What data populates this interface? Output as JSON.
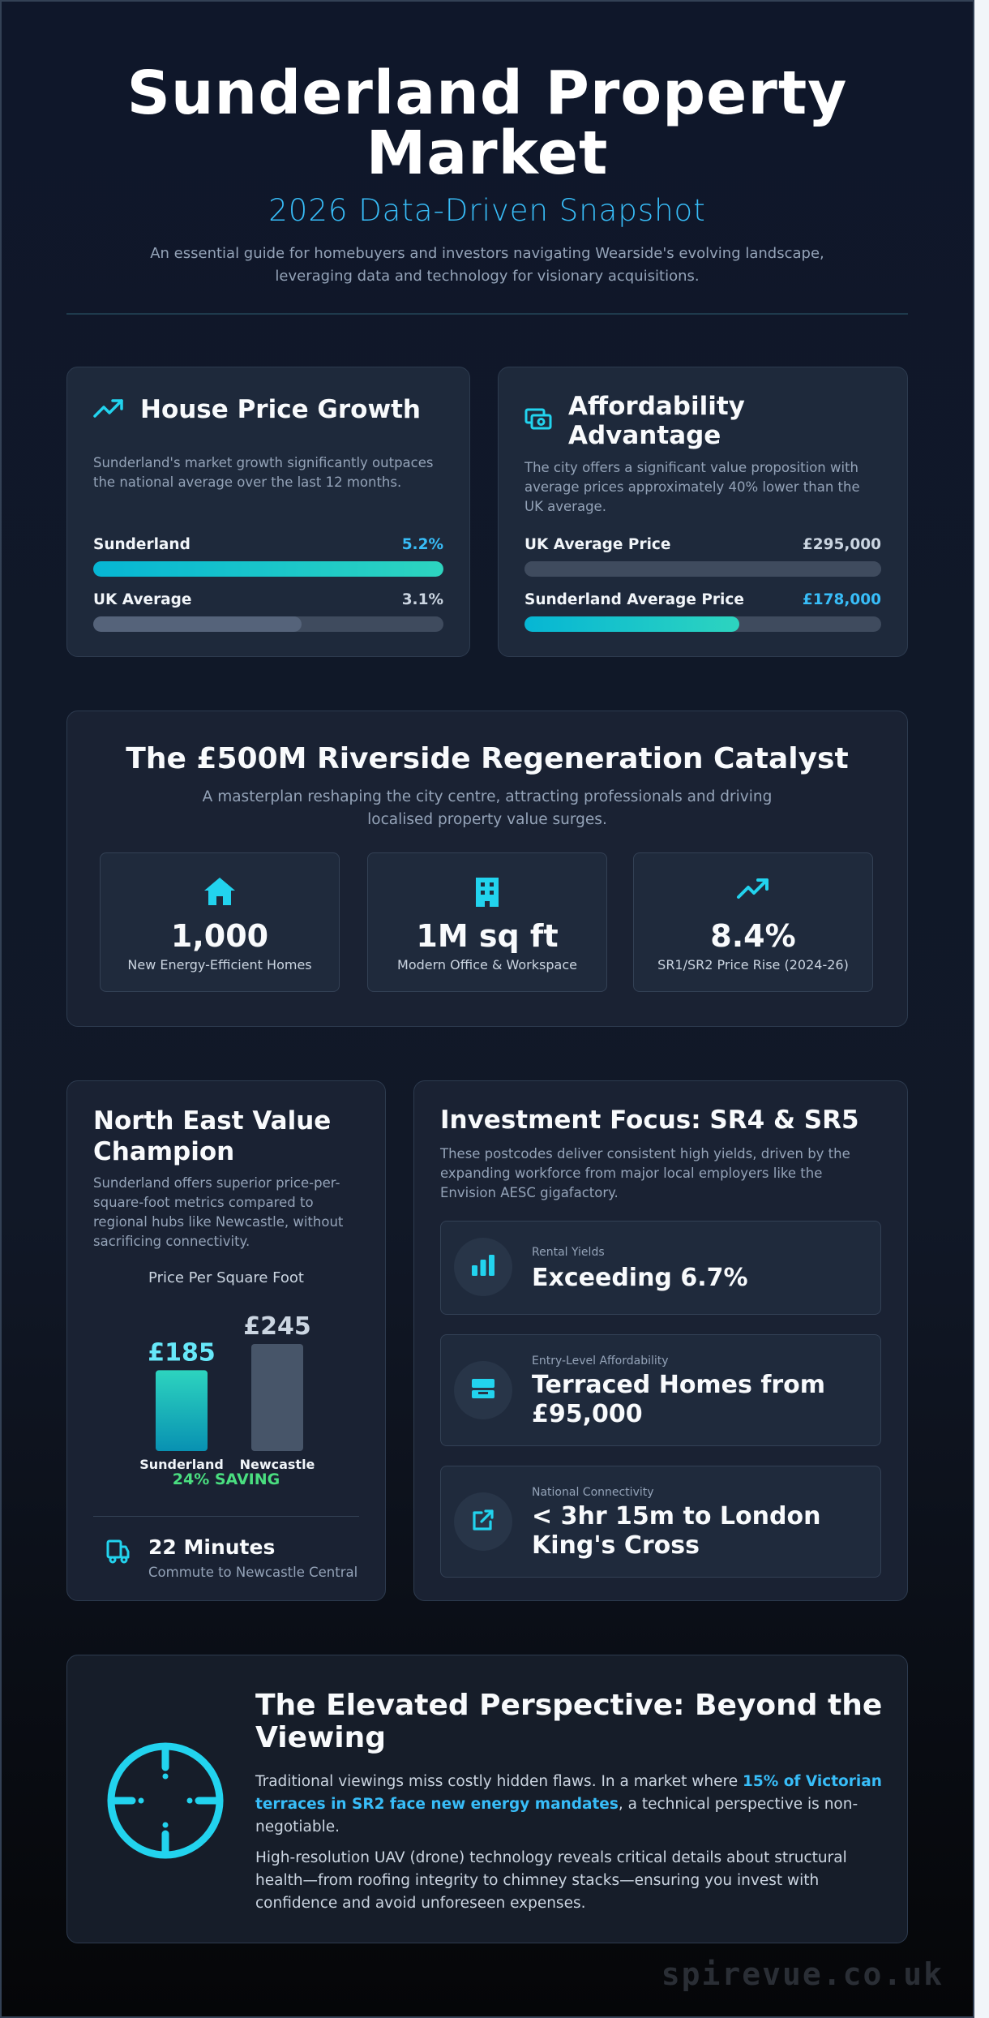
{
  "header": {
    "title_line1": "Sunderland Property",
    "title_line2": "Market",
    "subtitle": "2026 Data-Driven Snapshot",
    "intro": "An essential guide for homebuyers and investors navigating Wearside's evolving landscape, leveraging data and technology for visionary acquisitions."
  },
  "price_growth": {
    "title": "House Price Growth",
    "icon": "trending-up-icon",
    "description": "Sunderland's market growth significantly outpaces the national average over the last 12 months.",
    "rows": [
      {
        "name": "Sunderland",
        "value": "5.2%",
        "fraction": 1.0
      },
      {
        "name": "UK Average",
        "value": "3.1%",
        "fraction": 0.596
      }
    ]
  },
  "affordability": {
    "title_line1": "Affordability",
    "title_line2": "Advantage",
    "icon": "money-icon",
    "description": "The city offers a significant value proposition with average prices approximately 40% lower than the UK average.",
    "rows": [
      {
        "name": "UK Average Price",
        "value": "£295,000",
        "fraction": 1.0
      },
      {
        "name": "Sunderland Average Price",
        "value": "£178,000",
        "fraction": 0.603
      }
    ]
  },
  "regeneration": {
    "title": "The £500M Riverside Regeneration Catalyst",
    "subtitle": "A masterplan reshaping the city centre, attracting professionals and driving localised property value surges.",
    "stats": [
      {
        "icon": "house-icon",
        "value": "1,000",
        "label": "New Energy-Efficient Homes"
      },
      {
        "icon": "office-building-icon",
        "value": "1M sq ft",
        "label": "Modern Office & Workspace"
      },
      {
        "icon": "trending-up-icon",
        "value": "8.4%",
        "label": "SR1/SR2 Price Rise (2024-26)"
      }
    ]
  },
  "value_champion": {
    "title_line1": "North East Value",
    "title_line2": "Champion",
    "description": "Sunderland offers superior price-per-square-foot metrics compared to regional hubs like Newcastle, without sacrificing connectivity.",
    "saving": "24% SAVING",
    "commute_value": "22 Minutes",
    "commute_label": "Commute to Newcastle Central",
    "commute_icon": "train-icon"
  },
  "chart_data": {
    "type": "bar",
    "title": "Price Per Square Foot",
    "categories": [
      "Sunderland",
      "Newcastle"
    ],
    "values": [
      185,
      245
    ],
    "value_labels": [
      "£185",
      "£245"
    ],
    "colors": [
      "#22d3ee",
      "#475569"
    ],
    "ylim": [
      0,
      245
    ]
  },
  "investment": {
    "title": "Investment Focus: SR4 & SR5",
    "description": "These postcodes deliver consistent high yields, driven by the expanding workforce from major local employers like the Envision AESC gigafactory.",
    "items": [
      {
        "icon": "bar-chart-icon",
        "small": "Rental Yields",
        "big_line1": "Exceeding 6.7%",
        "big_line2": ""
      },
      {
        "icon": "home-property-icon",
        "small": "Entry-Level Affordability",
        "big_line1": "Terraced Homes from",
        "big_line2": "£95,000"
      },
      {
        "icon": "external-link-icon",
        "small": "National Connectivity",
        "big_line1": "< 3hr 15m to London",
        "big_line2": "King's Cross"
      }
    ]
  },
  "perspective": {
    "icon": "crosshair-icon",
    "title_line1": "The Elevated Perspective: Beyond the",
    "title_line2": "Viewing",
    "p1_before": "Traditional viewings miss costly hidden flaws. In a market where ",
    "p1_highlight": "15% of Victorian terraces in SR2 face new energy mandates",
    "p1_after": ", a technical perspective is non-negotiable.",
    "p2": "High-resolution UAV (drone) technology reveals critical details about structural health—from roofing integrity to chimney stacks—ensuring you invest with confidence and avoid unforeseen expenses."
  },
  "watermark": "spirevue.co.uk",
  "colors": {
    "accent": "#22d3ee",
    "highlight": "#38bdf8",
    "saving": "#4ade80"
  }
}
